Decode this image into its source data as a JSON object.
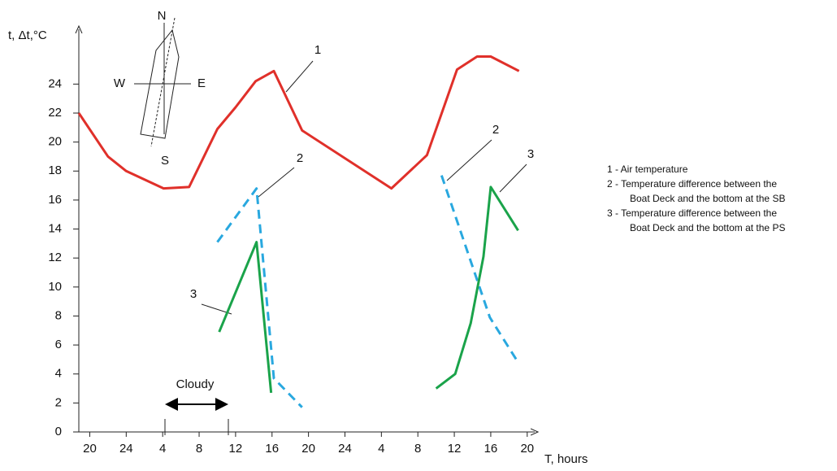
{
  "chart_data": {
    "type": "line",
    "y_label": "t, Δt,°C",
    "x_label": "T, hours",
    "xlim": [
      18.8,
      69
    ],
    "ylim": [
      0,
      27.5
    ],
    "xticks": [
      20,
      24,
      {
        "value": 28,
        "label": "4"
      },
      {
        "value": 32,
        "label": "8"
      },
      {
        "value": 36,
        "label": "12"
      },
      {
        "value": 40,
        "label": "16"
      },
      {
        "value": 44,
        "label": "20"
      },
      {
        "value": 48,
        "label": "24"
      },
      {
        "value": 52,
        "label": "4"
      },
      {
        "value": 56,
        "label": "8"
      },
      {
        "value": 60,
        "label": "12"
      },
      {
        "value": 64,
        "label": "16"
      },
      {
        "value": 68,
        "label": "20"
      }
    ],
    "yticks": [
      0,
      2,
      4,
      6,
      8,
      10,
      12,
      14,
      16,
      18,
      20,
      22,
      24
    ],
    "series": [
      {
        "label": "1",
        "color": "#e0302a",
        "dashed": false,
        "x": [
          18.8,
          22,
          24,
          28.1,
          30.9,
          34,
          36,
          38.2,
          40.2,
          43.3,
          53.1,
          57,
          60.3,
          62.5,
          64,
          67.1
        ],
        "values": [
          22,
          19,
          18,
          16.8,
          16.9,
          20.9,
          22.4,
          24.2,
          24.9,
          20.8,
          16.8,
          19.1,
          25,
          25.9,
          25.9,
          24.9
        ]
      },
      {
        "label": "2",
        "color": "#29a8df",
        "dashed": true,
        "x": [
          34,
          38.3,
          40.2,
          43.3,
          null,
          58.6,
          63.9,
          67.1
        ],
        "values": [
          13.1,
          16.8,
          3.7,
          1.7,
          null,
          17.7,
          7.9,
          4.7
        ]
      },
      {
        "label": "3",
        "color": "#1aa34a",
        "dashed": false,
        "x": [
          34.2,
          38.3,
          39.9,
          null,
          58,
          60.1,
          61.8,
          63.2,
          64,
          67
        ],
        "values": [
          6.9,
          13.1,
          2.7,
          null,
          3,
          4,
          7.5,
          12.1,
          16.9,
          13.9
        ]
      }
    ],
    "legend": [
      [
        "1 - Air temperature"
      ],
      [
        "2 - Temperature difference between the",
        "Boat Deck and the bottom at the SB"
      ],
      [
        "3 - Temperature difference between the",
        "Boat Deck and the bottom at the PS"
      ]
    ],
    "annotations": {
      "cloudy": "Cloudy",
      "north": "N",
      "south": "S",
      "west": "W",
      "east": "E"
    }
  }
}
